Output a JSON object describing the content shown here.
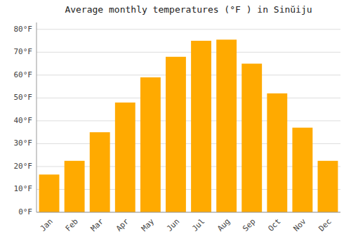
{
  "chart_data": {
    "type": "bar",
    "title": "Average monthly temperatures (°F ) in Sinŭiju",
    "categories": [
      "Jan",
      "Feb",
      "Mar",
      "Apr",
      "May",
      "Jun",
      "Jul",
      "Aug",
      "Sep",
      "Oct",
      "Nov",
      "Dec"
    ],
    "values": [
      16.5,
      22.5,
      35,
      48,
      59,
      68,
      75,
      75.5,
      65,
      52,
      37,
      22.5
    ],
    "color": "#FFAA00",
    "ylim": [
      0,
      83
    ],
    "yticks": [
      {
        "value": 0,
        "label": "0°F"
      },
      {
        "value": 10,
        "label": "10°F"
      },
      {
        "value": 20,
        "label": "20°F"
      },
      {
        "value": 30,
        "label": "30°F"
      },
      {
        "value": 40,
        "label": "40°F"
      },
      {
        "value": 50,
        "label": "50°F"
      },
      {
        "value": 60,
        "label": "60°F"
      },
      {
        "value": 70,
        "label": "70°F"
      },
      {
        "value": 80,
        "label": "80°F"
      }
    ],
    "grid": true
  }
}
